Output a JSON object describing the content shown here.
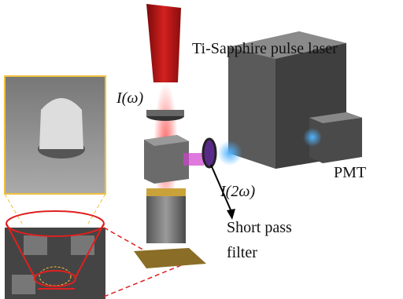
{
  "labels": {
    "laser": "Ti-Sapphire pulse laser",
    "fundamental": "I(ω)",
    "second_harmonic": "I(2ω)",
    "detector": "PMT",
    "filter": [
      "Short pass",
      "filter"
    ]
  }
}
